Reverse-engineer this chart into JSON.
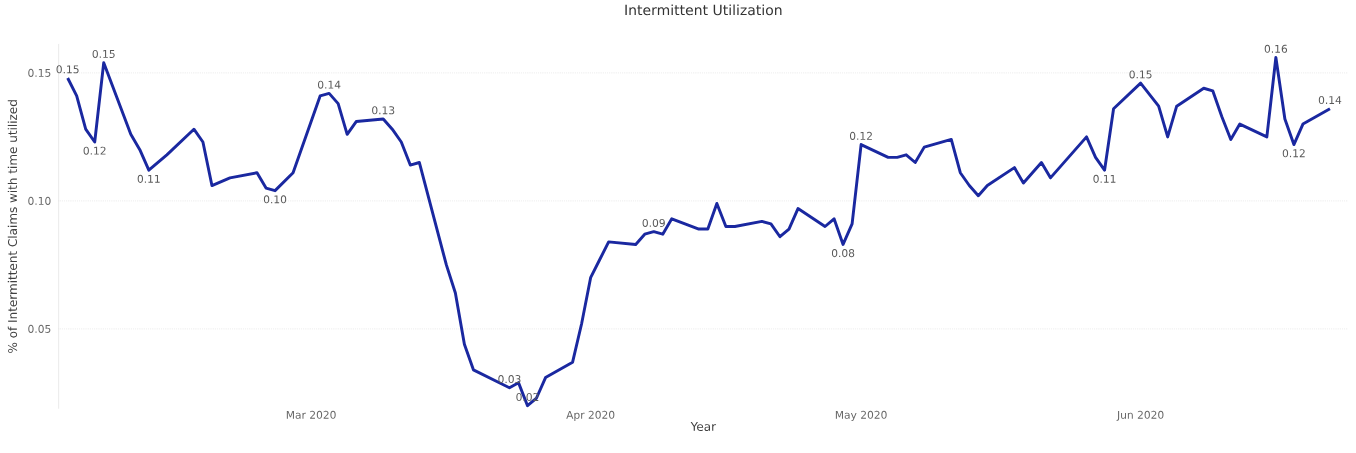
{
  "chart_data": {
    "type": "line",
    "title": "Intermittent Utilization",
    "xlabel": "Year",
    "ylabel": "% of Intermittent Claims with time utilized",
    "color": "#1a28a0",
    "line_style": "solid",
    "grid": "y",
    "xlim": [
      "2020-02-02",
      "2020-06-24"
    ],
    "ylim": [
      0.0188,
      0.1613
    ],
    "xticks": [
      {
        "value": "2020-03-01",
        "label": "Mar 2020"
      },
      {
        "value": "2020-04-01",
        "label": "Apr 2020"
      },
      {
        "value": "2020-05-01",
        "label": "May 2020"
      },
      {
        "value": "2020-06-01",
        "label": "Jun 2020"
      }
    ],
    "yticks": [
      {
        "value": 0.05,
        "label": "0.05"
      },
      {
        "value": 0.1,
        "label": "0.10"
      },
      {
        "value": 0.15,
        "label": "0.15"
      }
    ],
    "x": [
      "2020-02-03",
      "2020-02-04",
      "2020-02-05",
      "2020-02-06",
      "2020-02-07",
      "2020-02-10",
      "2020-02-11",
      "2020-02-12",
      "2020-02-14",
      "2020-02-17",
      "2020-02-18",
      "2020-02-19",
      "2020-02-21",
      "2020-02-24",
      "2020-02-25",
      "2020-02-26",
      "2020-02-28",
      "2020-03-02",
      "2020-03-03",
      "2020-03-04",
      "2020-03-05",
      "2020-03-06",
      "2020-03-09",
      "2020-03-10",
      "2020-03-11",
      "2020-03-12",
      "2020-03-13",
      "2020-03-16",
      "2020-03-17",
      "2020-03-18",
      "2020-03-19",
      "2020-03-23",
      "2020-03-24",
      "2020-03-25",
      "2020-03-26",
      "2020-03-27",
      "2020-03-30",
      "2020-03-31",
      "2020-04-01",
      "2020-04-02",
      "2020-04-03",
      "2020-04-06",
      "2020-04-07",
      "2020-04-08",
      "2020-04-09",
      "2020-04-10",
      "2020-04-13",
      "2020-04-14",
      "2020-04-15",
      "2020-04-16",
      "2020-04-17",
      "2020-04-20",
      "2020-04-21",
      "2020-04-22",
      "2020-04-23",
      "2020-04-24",
      "2020-04-27",
      "2020-04-28",
      "2020-04-29",
      "2020-04-30",
      "2020-05-01",
      "2020-05-04",
      "2020-05-05",
      "2020-05-06",
      "2020-05-07",
      "2020-05-08",
      "2020-05-11",
      "2020-05-12",
      "2020-05-13",
      "2020-05-14",
      "2020-05-15",
      "2020-05-18",
      "2020-05-19",
      "2020-05-20",
      "2020-05-21",
      "2020-05-22",
      "2020-05-26",
      "2020-05-27",
      "2020-05-28",
      "2020-05-29",
      "2020-06-01",
      "2020-06-03",
      "2020-06-04",
      "2020-06-05",
      "2020-06-08",
      "2020-06-09",
      "2020-06-10",
      "2020-06-11",
      "2020-06-12",
      "2020-06-15",
      "2020-06-16",
      "2020-06-17",
      "2020-06-18",
      "2020-06-19",
      "2020-06-22"
    ],
    "values": [
      0.148,
      0.141,
      0.128,
      0.123,
      0.154,
      0.126,
      0.12,
      0.112,
      0.118,
      0.128,
      0.123,
      0.106,
      0.109,
      0.111,
      0.105,
      0.104,
      0.111,
      0.141,
      0.142,
      0.138,
      0.126,
      0.131,
      0.132,
      0.128,
      0.123,
      0.114,
      0.115,
      0.075,
      0.064,
      0.044,
      0.034,
      0.027,
      0.029,
      0.02,
      0.023,
      0.031,
      0.037,
      0.052,
      0.07,
      0.077,
      0.084,
      0.083,
      0.087,
      0.088,
      0.087,
      0.093,
      0.089,
      0.089,
      0.099,
      0.09,
      0.09,
      0.092,
      0.091,
      0.086,
      0.089,
      0.097,
      0.09,
      0.093,
      0.083,
      0.091,
      0.122,
      0.117,
      0.117,
      0.118,
      0.115,
      0.121,
      0.124,
      0.111,
      0.106,
      0.102,
      0.106,
      0.113,
      0.107,
      0.111,
      0.115,
      0.109,
      0.125,
      0.117,
      0.112,
      0.136,
      0.146,
      0.137,
      0.125,
      0.137,
      0.144,
      0.143,
      0.133,
      0.124,
      0.13,
      0.125,
      0.156,
      0.132,
      0.122,
      0.13,
      0.136
    ],
    "value_labels": [
      "0.15",
      null,
      null,
      "0.12",
      "0.15",
      null,
      null,
      "0.11",
      null,
      null,
      null,
      null,
      null,
      null,
      null,
      "0.10",
      null,
      null,
      "0.14",
      null,
      null,
      null,
      "0.13",
      null,
      null,
      null,
      null,
      null,
      null,
      null,
      null,
      "0.03",
      null,
      "0.02",
      null,
      null,
      null,
      null,
      null,
      null,
      null,
      null,
      null,
      "0.09",
      null,
      null,
      null,
      null,
      null,
      null,
      null,
      null,
      null,
      null,
      null,
      null,
      null,
      null,
      "0.08",
      null,
      "0.12",
      null,
      null,
      null,
      null,
      null,
      null,
      null,
      null,
      null,
      null,
      null,
      null,
      null,
      null,
      null,
      null,
      null,
      "0.11",
      null,
      "0.15",
      null,
      null,
      null,
      null,
      null,
      null,
      null,
      null,
      null,
      "0.16",
      null,
      "0.12",
      null,
      "0.14"
    ]
  }
}
